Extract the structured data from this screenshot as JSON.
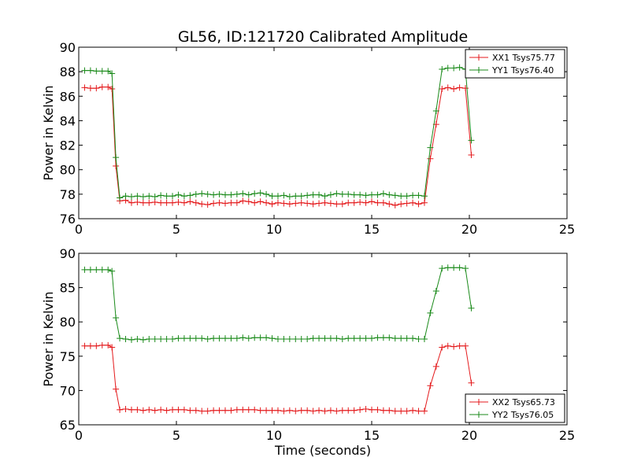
{
  "figure_title": "GL56, ID:121720 Calibrated Amplitude",
  "chart_data": [
    {
      "type": "line",
      "title": "GL56, ID:121720 Calibrated Amplitude",
      "xlabel": "",
      "ylabel": "Power in Kelvin",
      "xlim": [
        0,
        25
      ],
      "ylim": [
        76,
        90
      ],
      "xticks": [
        "0",
        "5",
        "10",
        "15",
        "20",
        "25"
      ],
      "yticks": [
        "76",
        "78",
        "80",
        "82",
        "84",
        "86",
        "88",
        "90"
      ],
      "grid": false,
      "legend_position": "top-right",
      "x": [
        0.3,
        0.6,
        0.9,
        1.2,
        1.5,
        1.7,
        1.9,
        2.1,
        2.4,
        2.7,
        3.0,
        3.3,
        3.6,
        3.9,
        4.2,
        4.5,
        4.8,
        5.1,
        5.4,
        5.7,
        6.0,
        6.3,
        6.6,
        6.9,
        7.2,
        7.5,
        7.8,
        8.1,
        8.4,
        8.7,
        9.0,
        9.3,
        9.6,
        9.9,
        10.2,
        10.5,
        10.8,
        11.1,
        11.4,
        11.7,
        12.0,
        12.3,
        12.6,
        12.9,
        13.2,
        13.5,
        13.8,
        14.1,
        14.4,
        14.7,
        15.0,
        15.3,
        15.6,
        15.9,
        16.2,
        16.5,
        16.8,
        17.1,
        17.4,
        17.7,
        18.0,
        18.3,
        18.6,
        18.9,
        19.2,
        19.5,
        19.8,
        20.1
      ],
      "series": [
        {
          "name": "XX1 Tsys75.77",
          "color": "#e41a1c",
          "values": [
            86.7,
            86.65,
            86.65,
            86.75,
            86.75,
            86.6,
            80.3,
            77.45,
            77.5,
            77.3,
            77.35,
            77.3,
            77.3,
            77.35,
            77.3,
            77.3,
            77.3,
            77.35,
            77.3,
            77.4,
            77.3,
            77.2,
            77.15,
            77.25,
            77.3,
            77.25,
            77.3,
            77.3,
            77.45,
            77.4,
            77.3,
            77.4,
            77.3,
            77.2,
            77.3,
            77.25,
            77.2,
            77.25,
            77.3,
            77.25,
            77.2,
            77.25,
            77.3,
            77.25,
            77.2,
            77.2,
            77.3,
            77.3,
            77.35,
            77.3,
            77.4,
            77.3,
            77.3,
            77.2,
            77.1,
            77.2,
            77.25,
            77.3,
            77.2,
            77.3,
            80.9,
            83.7,
            86.6,
            86.7,
            86.6,
            86.7,
            86.65,
            81.2
          ]
        },
        {
          "name": "YY1 Tsys76.40",
          "color": "#1a8a1a",
          "values": [
            88.1,
            88.1,
            88.05,
            88.05,
            88.05,
            87.85,
            81.0,
            77.7,
            77.85,
            77.8,
            77.85,
            77.8,
            77.85,
            77.8,
            77.9,
            77.85,
            77.85,
            77.95,
            77.85,
            77.9,
            78.0,
            78.05,
            78.0,
            77.95,
            78.0,
            77.95,
            77.95,
            78.0,
            78.05,
            77.95,
            78.05,
            78.1,
            78.0,
            77.85,
            77.85,
            77.9,
            77.8,
            77.85,
            77.85,
            77.9,
            77.95,
            77.95,
            77.85,
            77.95,
            78.05,
            78.0,
            78.0,
            77.95,
            77.95,
            77.9,
            77.95,
            77.95,
            78.05,
            77.95,
            77.9,
            77.85,
            77.85,
            77.9,
            77.9,
            77.85,
            81.8,
            84.8,
            88.2,
            88.3,
            88.3,
            88.35,
            88.2,
            82.4
          ]
        }
      ]
    },
    {
      "type": "line",
      "title": "",
      "xlabel": "Time (seconds)",
      "ylabel": "Power in Kelvin",
      "xlim": [
        0,
        25
      ],
      "ylim": [
        65,
        90
      ],
      "xticks": [
        "0",
        "5",
        "10",
        "15",
        "20",
        "25"
      ],
      "yticks": [
        "65",
        "70",
        "75",
        "80",
        "85",
        "90"
      ],
      "grid": false,
      "legend_position": "bottom-right",
      "x": [
        0.3,
        0.6,
        0.9,
        1.2,
        1.5,
        1.7,
        1.9,
        2.1,
        2.4,
        2.7,
        3.0,
        3.3,
        3.6,
        3.9,
        4.2,
        4.5,
        4.8,
        5.1,
        5.4,
        5.7,
        6.0,
        6.3,
        6.6,
        6.9,
        7.2,
        7.5,
        7.8,
        8.1,
        8.4,
        8.7,
        9.0,
        9.3,
        9.6,
        9.9,
        10.2,
        10.5,
        10.8,
        11.1,
        11.4,
        11.7,
        12.0,
        12.3,
        12.6,
        12.9,
        13.2,
        13.5,
        13.8,
        14.1,
        14.4,
        14.7,
        15.0,
        15.3,
        15.6,
        15.9,
        16.2,
        16.5,
        16.8,
        17.1,
        17.4,
        17.7,
        18.0,
        18.3,
        18.6,
        18.9,
        19.2,
        19.5,
        19.8,
        20.1
      ],
      "series": [
        {
          "name": "XX2 Tsys65.73",
          "color": "#e41a1c",
          "values": [
            76.5,
            76.5,
            76.5,
            76.6,
            76.6,
            76.3,
            70.2,
            67.2,
            67.3,
            67.2,
            67.2,
            67.1,
            67.2,
            67.1,
            67.2,
            67.1,
            67.2,
            67.2,
            67.2,
            67.1,
            67.1,
            67.0,
            67.0,
            67.1,
            67.1,
            67.1,
            67.1,
            67.2,
            67.2,
            67.2,
            67.2,
            67.1,
            67.1,
            67.1,
            67.1,
            67.0,
            67.1,
            67.0,
            67.1,
            67.1,
            67.0,
            67.1,
            67.0,
            67.1,
            67.0,
            67.1,
            67.1,
            67.1,
            67.2,
            67.3,
            67.2,
            67.2,
            67.1,
            67.1,
            67.0,
            67.0,
            67.0,
            67.1,
            67.0,
            67.0,
            70.7,
            73.5,
            76.3,
            76.5,
            76.4,
            76.5,
            76.5,
            71.1
          ]
        },
        {
          "name": "YY2 Tsys76.05",
          "color": "#1a8a1a",
          "values": [
            87.6,
            87.6,
            87.6,
            87.6,
            87.6,
            87.4,
            80.6,
            77.6,
            77.5,
            77.4,
            77.5,
            77.4,
            77.5,
            77.5,
            77.5,
            77.5,
            77.5,
            77.6,
            77.6,
            77.6,
            77.6,
            77.6,
            77.5,
            77.6,
            77.6,
            77.6,
            77.6,
            77.6,
            77.7,
            77.6,
            77.7,
            77.7,
            77.7,
            77.6,
            77.5,
            77.5,
            77.5,
            77.5,
            77.5,
            77.5,
            77.6,
            77.6,
            77.6,
            77.6,
            77.6,
            77.5,
            77.6,
            77.6,
            77.6,
            77.6,
            77.6,
            77.7,
            77.7,
            77.7,
            77.6,
            77.6,
            77.6,
            77.6,
            77.5,
            77.5,
            81.3,
            84.5,
            87.8,
            87.9,
            87.9,
            87.9,
            87.8,
            82.0
          ]
        }
      ]
    }
  ]
}
